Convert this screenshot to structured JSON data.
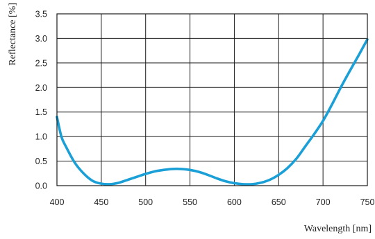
{
  "chart_data": {
    "type": "line",
    "xlabel": "Wavelength [nm]",
    "ylabel": "Reflectance [%]",
    "xlim": [
      400,
      750
    ],
    "ylim": [
      0,
      3.5
    ],
    "xticks": [
      400,
      450,
      500,
      550,
      600,
      650,
      700,
      750
    ],
    "yticks": [
      0.0,
      0.5,
      1.0,
      1.5,
      2.0,
      2.5,
      3.0,
      3.5
    ],
    "grid": true,
    "series": [
      {
        "color": "#1a9fd6",
        "x": [
          400,
          405,
          410,
          420,
          430,
          440,
          450,
          460,
          470,
          480,
          490,
          500,
          510,
          520,
          530,
          540,
          550,
          560,
          570,
          580,
          590,
          600,
          610,
          620,
          630,
          640,
          650,
          660,
          670,
          680,
          690,
          700,
          710,
          720,
          730,
          740,
          750
        ],
        "y": [
          1.4,
          1.0,
          0.8,
          0.47,
          0.25,
          0.1,
          0.04,
          0.03,
          0.06,
          0.12,
          0.18,
          0.24,
          0.29,
          0.32,
          0.34,
          0.34,
          0.32,
          0.28,
          0.22,
          0.15,
          0.09,
          0.05,
          0.03,
          0.03,
          0.06,
          0.12,
          0.22,
          0.36,
          0.55,
          0.8,
          1.05,
          1.32,
          1.65,
          2.0,
          2.33,
          2.65,
          2.98
        ]
      }
    ]
  }
}
